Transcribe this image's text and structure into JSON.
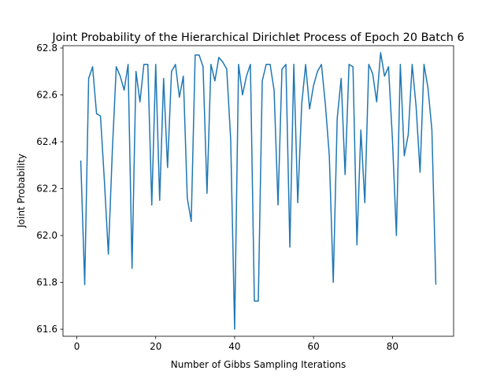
{
  "chart_data": {
    "type": "line",
    "title": "Joint Probability of the Hierarchical Dirichlet Process of Epoch 20 Batch 6",
    "xlabel": "Number of Gibbs Sampling Iterations",
    "ylabel": "Joint Probability",
    "xlim": [
      -3.5,
      95.5
    ],
    "ylim": [
      61.57,
      62.81
    ],
    "xticks": [
      0,
      20,
      40,
      60,
      80
    ],
    "yticks": [
      61.6,
      61.8,
      62.0,
      62.2,
      62.4,
      62.6,
      62.8
    ],
    "ytick_labels": [
      "61.6",
      "61.8",
      "62.0",
      "62.2",
      "62.4",
      "62.6",
      "62.8"
    ],
    "grid": false,
    "series": [
      {
        "color": "#1f77b4",
        "x": [
          1,
          2,
          3,
          4,
          5,
          6,
          7,
          8,
          9,
          10,
          11,
          12,
          13,
          14,
          15,
          16,
          17,
          18,
          19,
          20,
          21,
          22,
          23,
          24,
          25,
          26,
          27,
          28,
          29,
          30,
          31,
          32,
          33,
          34,
          35,
          36,
          37,
          38,
          39,
          40,
          41,
          42,
          43,
          44,
          45,
          46,
          47,
          48,
          49,
          50,
          51,
          52,
          53,
          54,
          55,
          56,
          57,
          58,
          59,
          60,
          61,
          62,
          63,
          64,
          65,
          66,
          67,
          68,
          69,
          70,
          71,
          72,
          73,
          74,
          75,
          76,
          77,
          78,
          79,
          80,
          81,
          82,
          83,
          84,
          85,
          86,
          87,
          88,
          89,
          90,
          91
        ],
        "values": [
          62.32,
          61.79,
          62.67,
          62.72,
          62.52,
          62.51,
          62.23,
          61.92,
          62.36,
          62.72,
          62.68,
          62.62,
          62.73,
          61.86,
          62.7,
          62.57,
          62.73,
          62.73,
          62.13,
          62.73,
          62.15,
          62.67,
          62.29,
          62.7,
          62.73,
          62.59,
          62.68,
          62.16,
          62.06,
          62.77,
          62.77,
          62.72,
          62.18,
          62.73,
          62.66,
          62.76,
          62.74,
          62.71,
          62.41,
          61.6,
          62.73,
          62.6,
          62.68,
          62.73,
          61.72,
          61.72,
          62.66,
          62.73,
          62.73,
          62.62,
          62.13,
          62.71,
          62.73,
          61.95,
          62.73,
          62.14,
          62.56,
          62.73,
          62.54,
          62.64,
          62.7,
          62.73,
          62.56,
          62.34,
          61.8,
          62.5,
          62.67,
          62.26,
          62.73,
          62.72,
          61.96,
          62.45,
          62.14,
          62.73,
          62.69,
          62.57,
          62.78,
          62.68,
          62.72,
          62.41,
          62.0,
          62.73,
          62.34,
          62.43,
          62.73,
          62.55,
          62.27,
          62.73,
          62.63,
          62.45,
          61.79
        ]
      }
    ]
  }
}
